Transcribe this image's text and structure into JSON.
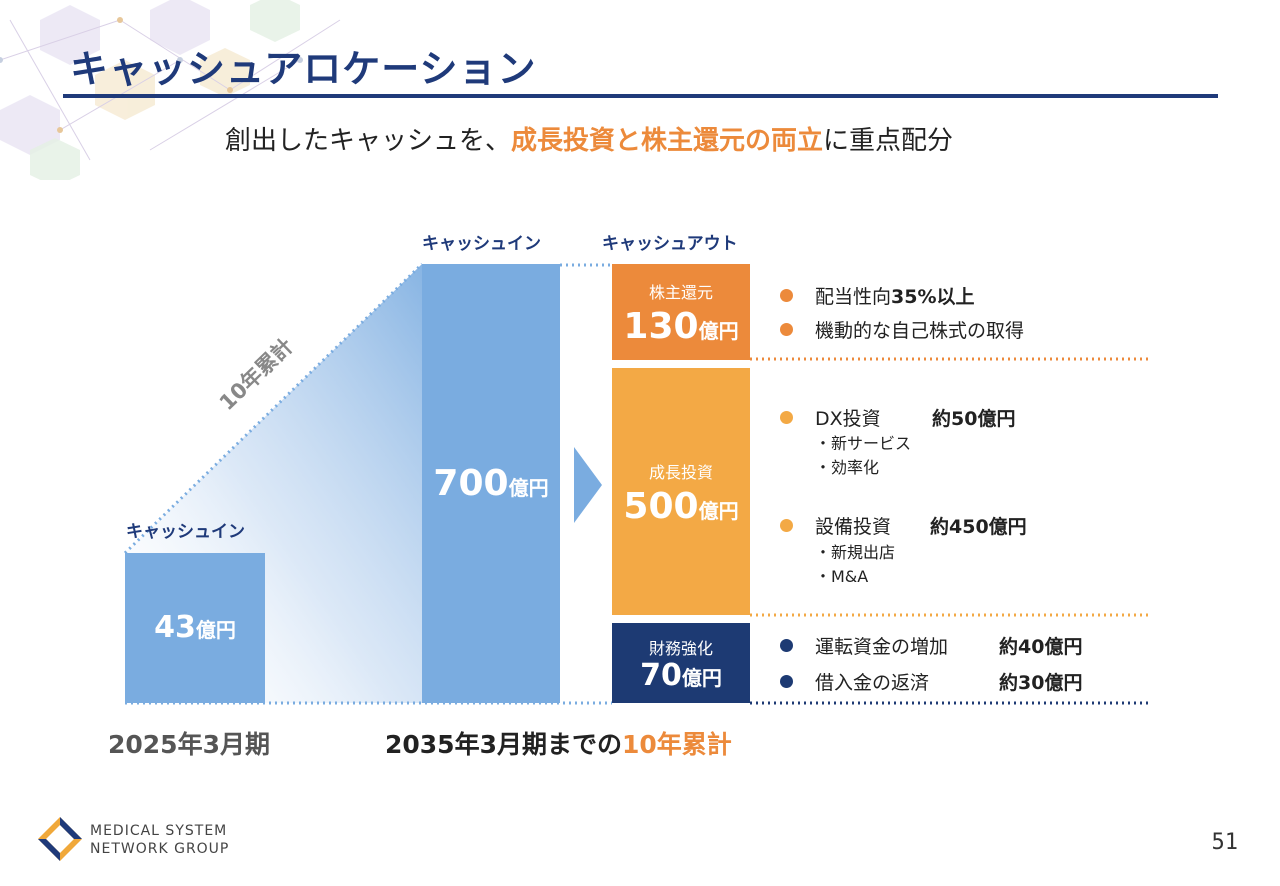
{
  "slide": {
    "title": "キャッシュアロケーション",
    "subtitle_prefix": "創出したキャッシュを、",
    "subtitle_highlight": "成長投資と株主還元の両立",
    "subtitle_suffix": "に重点配分",
    "page_number": "51"
  },
  "colors": {
    "navy": "#1f3a7a",
    "orange": "#ec8a3b",
    "light_orange": "#f3a945",
    "blue_bar": "#7aace0",
    "dark_navy_box": "#1d3a73"
  },
  "left_block": {
    "label": "キャッシュイン",
    "value": "43",
    "unit": "億円",
    "period": "2025年3月期"
  },
  "diagonal_label": "10年累計",
  "middle_block": {
    "label": "キャッシュイン",
    "value": "700",
    "unit": "億円",
    "period_prefix": "2035年3月期までの",
    "period_highlight": "10年累計"
  },
  "cash_out": {
    "label": "キャッシュアウト",
    "segments": [
      {
        "name": "株主還元",
        "value": "130",
        "unit": "億円"
      },
      {
        "name": "成長投資",
        "value": "500",
        "unit": "億円"
      },
      {
        "name": "財務強化",
        "value": "70",
        "unit": "億円"
      }
    ]
  },
  "details": {
    "shareholder": [
      {
        "text": "配当性向",
        "bold": "35%以上"
      },
      {
        "text": "機動的な自己株式の取得",
        "bold": ""
      }
    ],
    "growth": [
      {
        "text": "DX投資",
        "bold": "約50億円",
        "subs": [
          "・新サービス",
          "・効率化"
        ]
      },
      {
        "text": "設備投資",
        "bold": "約450億円",
        "subs": [
          "・新規出店",
          "・M&A"
        ]
      }
    ],
    "financial": [
      {
        "text": "運転資金の増加",
        "bold": "約40億円"
      },
      {
        "text": "借入金の返済",
        "bold": "約30億円"
      }
    ]
  },
  "logo": {
    "line1": "MEDICAL SYSTEM",
    "line2": "NETWORK GROUP"
  }
}
